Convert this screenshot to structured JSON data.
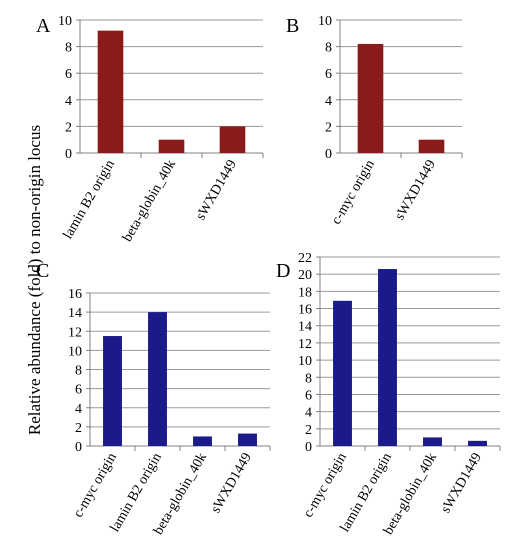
{
  "ylabel": "Relative abundance (fold) to non-origin locus",
  "chart_data": [
    {
      "type": "bar",
      "panel": "A",
      "categories": [
        "lamin B2 origin",
        "beta-globin_40k",
        "sWXD1449"
      ],
      "values": [
        9.2,
        1.0,
        2.0
      ],
      "ylim": [
        0,
        10
      ],
      "yticks": [
        0,
        2,
        4,
        6,
        8,
        10
      ],
      "color": "#8b1a1a",
      "grid": true
    },
    {
      "type": "bar",
      "panel": "B",
      "categories": [
        "c-myc origin",
        "sWXD1449"
      ],
      "values": [
        8.2,
        1.0
      ],
      "ylim": [
        0,
        10
      ],
      "yticks": [
        0,
        2,
        4,
        6,
        8,
        10
      ],
      "color": "#8b1a1a",
      "grid": true
    },
    {
      "type": "bar",
      "panel": "C",
      "categories": [
        "c-myc origin",
        "lamin B2 origin",
        "beta-globin_40k",
        "sWXD1449"
      ],
      "values": [
        11.5,
        14.0,
        1.0,
        1.3
      ],
      "ylim": [
        0,
        16
      ],
      "yticks": [
        0,
        2,
        4,
        6,
        8,
        10,
        12,
        14,
        16
      ],
      "color": "#1a1a8b",
      "grid": true
    },
    {
      "type": "bar",
      "panel": "D",
      "categories": [
        "c-myc  origin",
        "lamin B2 origin",
        "beta-globin_40k",
        "sWXD1449"
      ],
      "values": [
        16.9,
        20.6,
        1.0,
        0.6
      ],
      "ylim": [
        0,
        22
      ],
      "yticks": [
        0,
        2,
        4,
        6,
        8,
        10,
        12,
        14,
        16,
        18,
        20,
        22
      ],
      "color": "#1a1a8b",
      "grid": true
    }
  ]
}
